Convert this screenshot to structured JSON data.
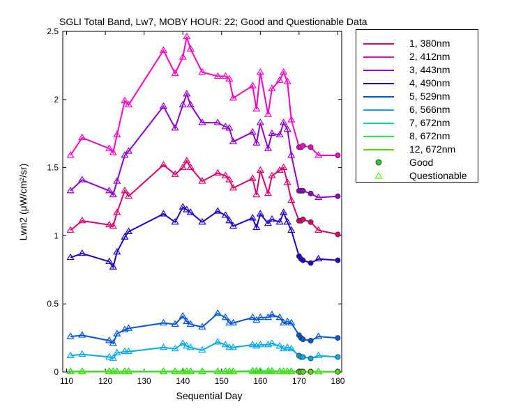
{
  "chart_data": {
    "type": "line",
    "title": "SGLI Total Band, Lw7, MOBY HOUR: 22;  Good and Questionable Data",
    "xlabel": "Sequential Day",
    "ylabel": "Lwn2 (μW/cm²/sr)",
    "xlim": [
      109,
      181
    ],
    "ylim": [
      0,
      2.5
    ],
    "xticks": [
      110,
      120,
      130,
      140,
      150,
      160,
      170,
      180
    ],
    "yticks": [
      0,
      0.5,
      1,
      1.5,
      2,
      2.5
    ],
    "ytick_labels": [
      "0",
      "0.5",
      "1",
      "1.5",
      "2",
      "2.5"
    ],
    "grid": false,
    "legend_position": "outside-right",
    "x": [
      111,
      114,
      121,
      122,
      123,
      125,
      126,
      135,
      138,
      140,
      141,
      142,
      145,
      149,
      151,
      152,
      153,
      158,
      159,
      160,
      162,
      163,
      165,
      166,
      167,
      168,
      170,
      170.5,
      171,
      173,
      175,
      180
    ],
    "quality": [
      "q",
      "q",
      "q",
      "q",
      "q",
      "q",
      "q",
      "q",
      "q",
      "q",
      "q",
      "q",
      "q",
      "q",
      "q",
      "q",
      "q",
      "q",
      "q",
      "q",
      "q",
      "q",
      "q",
      "q",
      "q",
      "q",
      "g",
      "g",
      "g",
      "g",
      "q",
      "g"
    ],
    "series": [
      {
        "name": "1, 380nm",
        "color": "#e0006e",
        "values": [
          1.04,
          1.11,
          1.08,
          1.07,
          1.17,
          1.33,
          1.29,
          1.52,
          1.45,
          1.5,
          1.55,
          1.5,
          1.4,
          1.46,
          1.44,
          1.41,
          1.35,
          1.42,
          1.3,
          1.48,
          1.31,
          1.44,
          1.48,
          1.5,
          1.39,
          1.26,
          1.11,
          1.11,
          1.12,
          1.1,
          1.04,
          1.01
        ]
      },
      {
        "name": "2, 412nm",
        "color": "#ff00cc",
        "values": [
          1.59,
          1.72,
          1.64,
          1.61,
          1.74,
          1.99,
          1.96,
          2.36,
          2.19,
          2.31,
          2.46,
          2.37,
          2.2,
          2.17,
          2.17,
          2.15,
          2.01,
          2.1,
          1.93,
          2.2,
          1.89,
          2.08,
          2.14,
          2.2,
          2.13,
          1.85,
          1.65,
          1.65,
          1.66,
          1.65,
          1.59,
          1.59
        ]
      },
      {
        "name": "3, 443nm",
        "color": "#9400d3",
        "values": [
          1.33,
          1.41,
          1.33,
          1.3,
          1.4,
          1.59,
          1.62,
          1.95,
          1.79,
          1.96,
          2.04,
          1.96,
          1.83,
          1.83,
          1.8,
          1.79,
          1.69,
          1.76,
          1.68,
          1.83,
          1.64,
          1.75,
          1.74,
          1.83,
          1.78,
          1.59,
          1.33,
          1.33,
          1.33,
          1.31,
          1.28,
          1.29
        ]
      },
      {
        "name": "4, 490nm",
        "color": "#2200cc",
        "values": [
          0.84,
          0.87,
          0.81,
          0.77,
          0.88,
          0.99,
          1.03,
          1.16,
          1.1,
          1.21,
          1.19,
          1.17,
          1.1,
          1.18,
          1.15,
          1.11,
          1.07,
          1.13,
          1.06,
          1.16,
          1.09,
          1.12,
          1.1,
          1.17,
          1.1,
          1.04,
          0.85,
          0.83,
          0.82,
          0.8,
          0.83,
          0.82
        ]
      },
      {
        "name": "5, 529nm",
        "color": "#0055dd",
        "values": [
          0.26,
          0.27,
          0.23,
          0.21,
          0.28,
          0.31,
          0.32,
          0.36,
          0.35,
          0.41,
          0.37,
          0.35,
          0.33,
          0.43,
          0.4,
          0.36,
          0.36,
          0.4,
          0.38,
          0.4,
          0.4,
          0.42,
          0.4,
          0.36,
          0.37,
          0.36,
          0.27,
          0.25,
          0.24,
          0.23,
          0.26,
          0.25
        ]
      },
      {
        "name": "6, 566nm",
        "color": "#00aaee",
        "values": [
          0.12,
          0.13,
          0.11,
          0.1,
          0.14,
          0.15,
          0.15,
          0.18,
          0.17,
          0.21,
          0.19,
          0.18,
          0.16,
          0.22,
          0.2,
          0.18,
          0.18,
          0.2,
          0.19,
          0.2,
          0.2,
          0.21,
          0.19,
          0.17,
          0.18,
          0.17,
          0.12,
          0.11,
          0.11,
          0.1,
          0.12,
          0.11
        ]
      },
      {
        "name": "7, 672nm",
        "color": "#00ddaa",
        "values": [
          0.005,
          0.005,
          0.005,
          0.005,
          0.005,
          0.005,
          0.005,
          0.005,
          0.005,
          0.005,
          0.005,
          0.005,
          0.005,
          0.005,
          0.005,
          0.005,
          0.005,
          0.008,
          0.008,
          0.008,
          0.008,
          0.008,
          0.005,
          0.005,
          0.005,
          0.005,
          0.003,
          0.003,
          0.003,
          0.003,
          0.003,
          0.003
        ]
      },
      {
        "name": "8, 672nm",
        "color": "#22ee44",
        "values": [
          0.003,
          0.003,
          0.003,
          0.003,
          0.003,
          0.003,
          0.003,
          0.003,
          0.003,
          0.003,
          0.003,
          0.003,
          0.003,
          0.003,
          0.003,
          0.003,
          0.003,
          0.005,
          0.005,
          0.005,
          0.005,
          0.005,
          0.003,
          0.003,
          0.003,
          0.003,
          0.002,
          0.002,
          0.002,
          0.002,
          0.002,
          0.002
        ]
      },
      {
        "name": "12, 672nm",
        "color": "#55dd00",
        "values": [
          0.002,
          0.002,
          0.002,
          0.002,
          0.002,
          0.002,
          0.002,
          0.002,
          0.002,
          0.002,
          0.002,
          0.002,
          0.002,
          0.002,
          0.002,
          0.002,
          0.002,
          0.003,
          0.003,
          0.003,
          0.003,
          0.003,
          0.002,
          0.002,
          0.002,
          0.002,
          0.001,
          0.001,
          0.001,
          0.001,
          0.001,
          0.001
        ]
      }
    ],
    "marker_legend": [
      {
        "label": "Good",
        "marker": "circle",
        "color": "#22cc22"
      },
      {
        "label": "Questionable",
        "marker": "triangle",
        "color": "#55ff00"
      }
    ]
  }
}
